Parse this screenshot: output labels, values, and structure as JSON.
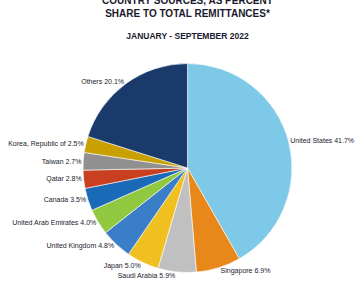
{
  "chart_data": {
    "type": "pie",
    "title": "COUNTRY SOURCES, AS PERCENT SHARE TO TOTAL REMITTANCES*",
    "subtitle": "JANUARY - SEPTEMBER 2022",
    "categories": [
      "United States 41.7%",
      "Singapore 6.9%",
      "Saudi Arabia 5.9%",
      "Japan 5.0%",
      "United Kingdom 4.8%",
      "United Arab Emirates 4.0%",
      "Canada 3.5%",
      "Qatar 2.8%",
      "Taiwan 2.7%",
      "Korea, Republic of 2.5%",
      "Others 20.1%"
    ],
    "values": [
      41.7,
      6.9,
      5.9,
      5.0,
      4.8,
      4.0,
      3.5,
      2.8,
      2.7,
      2.5,
      20.1
    ],
    "colors": [
      "#7ec8e8",
      "#e8881a",
      "#c0c0c0",
      "#f0c020",
      "#3a7ec8",
      "#90c840",
      "#1a6ab8",
      "#c84020",
      "#909090",
      "#c8a000",
      "#1a3a6b"
    ]
  }
}
